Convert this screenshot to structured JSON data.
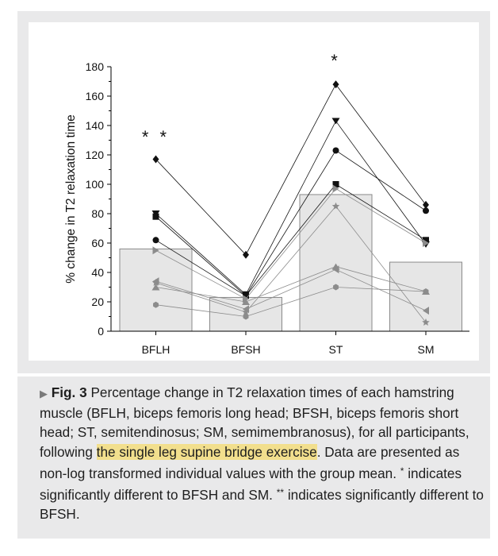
{
  "chart_data": {
    "type": "bar",
    "categories": [
      "BFLH",
      "BFSH",
      "ST",
      "SM"
    ],
    "group_mean": [
      56,
      23,
      93,
      47
    ],
    "ylabel": "% change in T2 relaxation time",
    "ylim": [
      0,
      180
    ],
    "yticks": [
      0,
      20,
      40,
      60,
      80,
      100,
      120,
      140,
      160,
      180
    ],
    "grid": false,
    "legend": "none",
    "significance": [
      {
        "category": "BFLH",
        "label": "**"
      },
      {
        "category": "ST",
        "label": "*"
      }
    ],
    "series": [
      {
        "marker": "diamond",
        "values": [
          117,
          52,
          168,
          86
        ]
      },
      {
        "marker": "triangle-down",
        "values": [
          80,
          25,
          143,
          59
        ]
      },
      {
        "marker": "square",
        "values": [
          78,
          24,
          100,
          62
        ]
      },
      {
        "marker": "circle",
        "values": [
          62,
          24,
          123,
          82
        ]
      },
      {
        "marker": "triangle-right",
        "values": [
          55,
          22,
          97,
          60
        ]
      },
      {
        "marker": "star",
        "values": [
          33,
          13,
          85,
          6
        ]
      },
      {
        "marker": "triangle-up",
        "values": [
          30,
          20,
          44,
          27
        ]
      },
      {
        "marker": "triangle-left",
        "values": [
          34,
          15,
          42,
          14
        ]
      },
      {
        "marker": "hexagon",
        "values": [
          18,
          10,
          30,
          27
        ]
      }
    ],
    "colors": {
      "bar_fill": "#e6e6e6",
      "bar_stroke": "#8a8a8a",
      "dark_series": "#111111",
      "gray_series": "#8c8c8c"
    }
  },
  "caption": {
    "arrow": "▶",
    "label": "Fig. 3",
    "text_before_highlight": "Percentage change in T2 relaxation times of each hamstring muscle (BFLH, biceps femoris long head; BFSH, biceps femoris short head; ST, semitendinosus; SM, semimembranosus), for all participants, following",
    "highlight": "the single leg supine bridge exercise",
    "text_after_highlight_1": ". Data are presented as non-log transformed individual values with the group mean.",
    "asterisk_single": "*",
    "text_after_highlight_2": "indicates significantly different to BFSH and SM.",
    "asterisk_double": "**",
    "text_after_highlight_3": "indicates significantly different to BFSH.",
    "highlight_color": "#f2df8d"
  }
}
